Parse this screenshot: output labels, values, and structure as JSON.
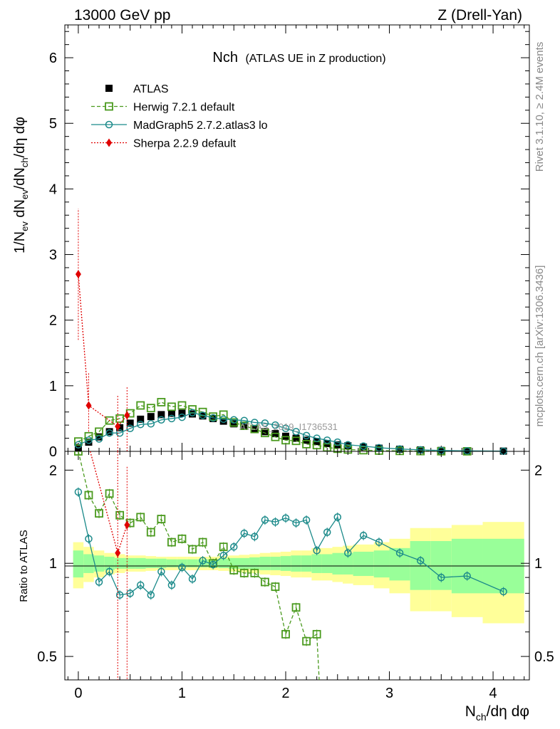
{
  "header": {
    "left": "13000 GeV pp",
    "right": "Z (Drell-Yan)"
  },
  "plot": {
    "title_main": "Nch",
    "title_sub": "(ATLAS UE in Z production)",
    "ylabel_top": "1/N_ev dN_ev/dN_ch/dη dφ",
    "ylabel_bottom": "Ratio to ATLAS",
    "xlabel": "N_ch/dη dφ",
    "watermark": "ATLAS_2019_I1736531",
    "side_note_1": "Rivet 3.1.10, ≥ 2.4M events",
    "side_note_2": "mcplots.cern.ch [arXiv:1306.3436]"
  },
  "legend": [
    {
      "label": "ATLAS",
      "color": "#000000",
      "marker": "square-filled"
    },
    {
      "label": "Herwig 7.2.1 default",
      "color": "#4a9a1e",
      "marker": "square-open"
    },
    {
      "label": "MadGraph5 2.7.2.atlas3 lo",
      "color": "#1b8a8a",
      "marker": "circle-open"
    },
    {
      "label": "Sherpa 2.2.9 default",
      "color": "#e00000",
      "marker": "diamond-filled"
    }
  ],
  "chart_data": [
    {
      "type": "scatter",
      "panel": "main",
      "title": "Nch (ATLAS UE in Z production)",
      "xlabel": "N_ch/dη dφ",
      "ylabel": "1/N_ev dN_ev/dN_ch/dη dφ",
      "xlim": [
        -0.13,
        4.35
      ],
      "ylim": [
        0,
        6.5
      ],
      "xticks": [
        0,
        1,
        2,
        3,
        4
      ],
      "yticks": [
        0,
        1,
        2,
        3,
        4,
        5,
        6
      ],
      "series": [
        {
          "name": "ATLAS",
          "color": "#000000",
          "x": [
            0.0,
            0.1,
            0.2,
            0.3,
            0.4,
            0.5,
            0.6,
            0.7,
            0.8,
            0.9,
            1.0,
            1.1,
            1.2,
            1.3,
            1.4,
            1.5,
            1.6,
            1.7,
            1.8,
            1.9,
            2.0,
            2.1,
            2.2,
            2.3,
            2.4,
            2.5,
            2.6,
            2.75,
            2.9,
            3.1,
            3.3,
            3.5,
            3.75,
            4.1
          ],
          "y": [
            0.06,
            0.14,
            0.22,
            0.3,
            0.36,
            0.43,
            0.49,
            0.53,
            0.56,
            0.58,
            0.58,
            0.57,
            0.54,
            0.5,
            0.46,
            0.42,
            0.38,
            0.34,
            0.3,
            0.27,
            0.23,
            0.2,
            0.17,
            0.15,
            0.12,
            0.1,
            0.085,
            0.065,
            0.048,
            0.032,
            0.022,
            0.014,
            0.008,
            0.004
          ]
        },
        {
          "name": "Herwig 7.2.1 default",
          "color": "#4a9a1e",
          "x": [
            0.0,
            0.1,
            0.2,
            0.3,
            0.4,
            0.5,
            0.6,
            0.7,
            0.8,
            0.9,
            1.0,
            1.1,
            1.2,
            1.3,
            1.4,
            1.5,
            1.6,
            1.7,
            1.8,
            1.9,
            2.0,
            2.1,
            2.2,
            2.3,
            2.4,
            2.5,
            2.6,
            2.75,
            2.9,
            3.1,
            3.3,
            3.5,
            3.75
          ],
          "y": [
            0.15,
            0.23,
            0.3,
            0.47,
            0.5,
            0.58,
            0.7,
            0.66,
            0.75,
            0.68,
            0.7,
            0.64,
            0.6,
            0.53,
            0.56,
            0.44,
            0.39,
            0.34,
            0.28,
            0.22,
            0.17,
            0.16,
            0.11,
            0.095,
            0.06,
            0.04,
            0.028,
            0.018,
            0.012,
            0.007,
            0.004,
            0.002,
            0.001
          ]
        },
        {
          "name": "MadGraph5 2.7.2.atlas3 lo",
          "color": "#1b8a8a",
          "x": [
            0.0,
            0.1,
            0.2,
            0.3,
            0.4,
            0.5,
            0.6,
            0.7,
            0.8,
            0.9,
            1.0,
            1.1,
            1.2,
            1.3,
            1.4,
            1.5,
            1.6,
            1.7,
            1.8,
            1.9,
            2.0,
            2.1,
            2.2,
            2.3,
            2.4,
            2.5,
            2.6,
            2.75,
            2.9,
            3.1,
            3.3,
            3.5,
            3.75,
            4.1
          ],
          "y": [
            0.1,
            0.17,
            0.19,
            0.28,
            0.28,
            0.35,
            0.41,
            0.42,
            0.48,
            0.5,
            0.52,
            0.59,
            0.55,
            0.51,
            0.49,
            0.48,
            0.47,
            0.44,
            0.43,
            0.4,
            0.35,
            0.3,
            0.24,
            0.2,
            0.17,
            0.14,
            0.1,
            0.08,
            0.055,
            0.036,
            0.023,
            0.013,
            0.0074,
            0.0033
          ]
        },
        {
          "name": "Sherpa 2.2.9 default",
          "color": "#e00000",
          "x": [
            0.0,
            0.1,
            0.38,
            0.47
          ],
          "y": [
            2.7,
            0.7,
            0.38,
            0.55
          ]
        }
      ]
    },
    {
      "type": "scatter",
      "panel": "ratio",
      "ylabel": "Ratio to ATLAS",
      "xlabel": "N_ch/dη dφ",
      "xlim": [
        -0.13,
        4.35
      ],
      "ylim": [
        0.42,
        2.3
      ],
      "yscale": "log",
      "xticks": [
        0,
        1,
        2,
        3,
        4
      ],
      "yticks": [
        0.5,
        1,
        2
      ],
      "series": [
        {
          "name": "Herwig 7.2.1 default",
          "color": "#4a9a1e",
          "x": [
            0.0,
            0.1,
            0.2,
            0.3,
            0.4,
            0.5,
            0.6,
            0.7,
            0.8,
            0.9,
            1.0,
            1.1,
            1.2,
            1.3,
            1.4,
            1.5,
            1.6,
            1.7,
            1.8,
            1.9,
            2.0,
            2.1,
            2.2,
            2.3
          ],
          "y": [
            2.3,
            1.66,
            1.45,
            1.68,
            1.43,
            1.35,
            1.41,
            1.26,
            1.39,
            1.17,
            1.2,
            1.11,
            1.17,
            1.0,
            1.13,
            0.95,
            0.93,
            0.93,
            0.87,
            0.84,
            0.59,
            0.72,
            0.56,
            0.59
          ]
        },
        {
          "name": "MadGraph5 2.7.2.atlas3 lo",
          "color": "#1b8a8a",
          "x": [
            0.0,
            0.1,
            0.2,
            0.3,
            0.4,
            0.5,
            0.6,
            0.7,
            0.8,
            0.9,
            1.0,
            1.1,
            1.2,
            1.3,
            1.4,
            1.5,
            1.6,
            1.7,
            1.8,
            1.9,
            2.0,
            2.1,
            2.2,
            2.3,
            2.4,
            2.5,
            2.6,
            2.75,
            2.9,
            3.1,
            3.3,
            3.5,
            3.75,
            4.1
          ],
          "y": [
            1.7,
            1.2,
            0.87,
            0.94,
            0.79,
            0.8,
            0.85,
            0.79,
            0.94,
            0.85,
            0.97,
            0.89,
            1.02,
            0.99,
            1.06,
            1.13,
            1.25,
            1.22,
            1.38,
            1.36,
            1.4,
            1.35,
            1.38,
            1.1,
            1.26,
            1.41,
            1.08,
            1.23,
            1.17,
            1.08,
            1.02,
            0.9,
            0.91,
            0.81
          ]
        },
        {
          "name": "Sherpa 2.2.9 default",
          "color": "#e00000",
          "x": [
            0.38,
            0.47
          ],
          "y": [
            1.08,
            1.33
          ]
        }
      ],
      "bands": {
        "x_edges": [
          -0.05,
          0.05,
          0.15,
          0.25,
          0.35,
          0.45,
          0.55,
          0.65,
          0.75,
          0.85,
          0.95,
          1.05,
          1.15,
          1.25,
          1.35,
          1.45,
          1.55,
          1.65,
          1.75,
          1.85,
          1.95,
          2.05,
          2.15,
          2.25,
          2.35,
          2.45,
          2.55,
          2.65,
          2.85,
          3.0,
          3.2,
          3.4,
          3.6,
          3.9,
          4.3
        ],
        "stat_halfwidth": [
          0.1,
          0.07,
          0.06,
          0.05,
          0.04,
          0.04,
          0.04,
          0.035,
          0.035,
          0.03,
          0.03,
          0.03,
          0.03,
          0.03,
          0.035,
          0.04,
          0.04,
          0.045,
          0.05,
          0.05,
          0.055,
          0.06,
          0.06,
          0.07,
          0.07,
          0.08,
          0.08,
          0.09,
          0.1,
          0.12,
          0.18,
          0.18,
          0.2,
          0.2
        ],
        "total_halfwidth": [
          0.17,
          0.13,
          0.1,
          0.08,
          0.07,
          0.06,
          0.06,
          0.055,
          0.05,
          0.05,
          0.05,
          0.05,
          0.05,
          0.05,
          0.055,
          0.06,
          0.065,
          0.07,
          0.08,
          0.085,
          0.09,
          0.1,
          0.1,
          0.12,
          0.12,
          0.13,
          0.14,
          0.15,
          0.17,
          0.2,
          0.3,
          0.3,
          0.33,
          0.36
        ]
      }
    }
  ]
}
